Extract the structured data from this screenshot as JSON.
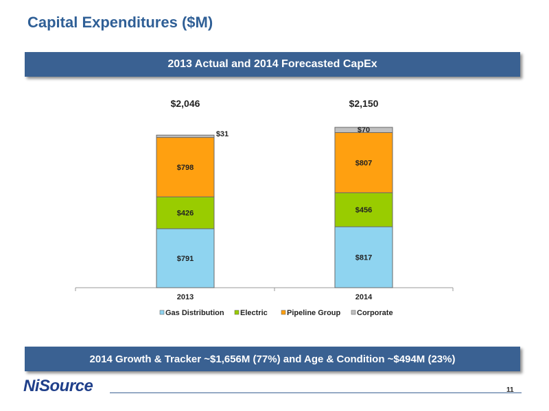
{
  "header": {
    "title": "Capital Expenditures ($M)"
  },
  "banner_top": {
    "text": "2013 Actual and 2014 Forecasted CapEx"
  },
  "banner_bottom": {
    "text": "2014 Growth & Tracker ~$1,656M (77%) and Age & Condition ~$494M (23%)"
  },
  "footer": {
    "logo": "NiSource",
    "page_number": "11"
  },
  "colors": {
    "gas_distribution": "#8fd4f0",
    "electric": "#99cc00",
    "pipeline_group": "#ffa010",
    "corporate": "#c0c0c0",
    "banner": "#3a6192",
    "title": "#2f5f96"
  },
  "chart_data": {
    "type": "bar",
    "stacked": true,
    "categories": [
      "2013",
      "2014"
    ],
    "series": [
      {
        "name": "Gas Distribution",
        "values": [
          791,
          817
        ],
        "labels": [
          "$791",
          "$817"
        ],
        "color": "#8fd4f0"
      },
      {
        "name": "Electric",
        "values": [
          426,
          456
        ],
        "labels": [
          "$426",
          "$456"
        ],
        "color": "#99cc00"
      },
      {
        "name": "Pipeline Group",
        "values": [
          798,
          807
        ],
        "labels": [
          "$798",
          "$807"
        ],
        "color": "#ffa010"
      },
      {
        "name": "Corporate",
        "values": [
          31,
          70
        ],
        "labels": [
          "$31",
          "$70"
        ],
        "color": "#c0c0c0"
      }
    ],
    "totals": [
      2046,
      2150
    ],
    "total_labels": [
      "$2,046",
      "$2,150"
    ],
    "legend_position": "bottom",
    "grid": false,
    "ylim": [
      0,
      2250
    ]
  }
}
